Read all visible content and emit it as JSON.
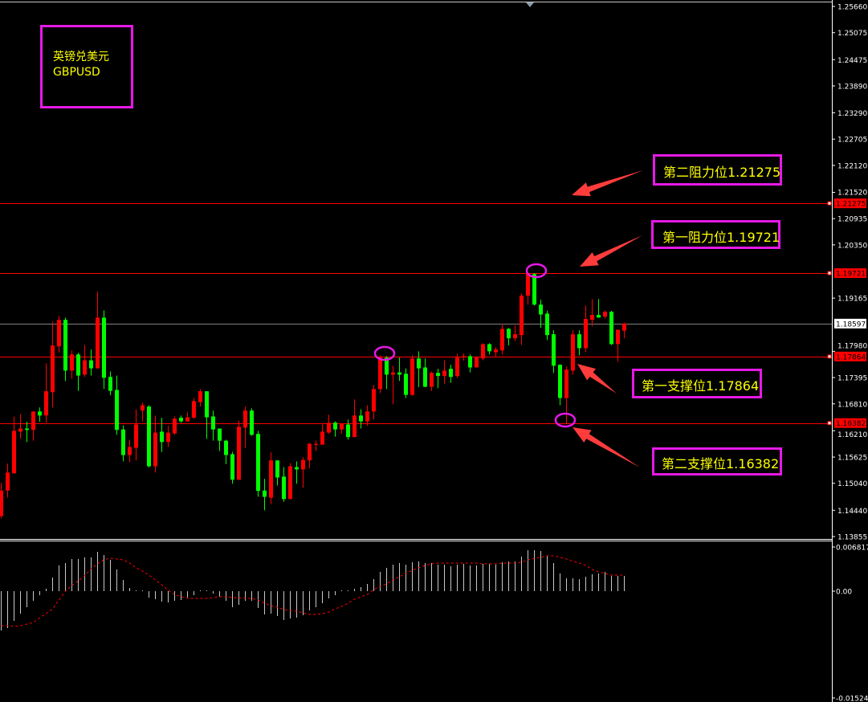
{
  "title_box": {
    "name_cn": "英镑兑美元",
    "symbol": "GBPUSD"
  },
  "annotations": [
    {
      "label": "第二阻力位1.21275",
      "level": 1.21275
    },
    {
      "label": "第一阻力位1.19721",
      "level": 1.19721
    },
    {
      "label": "第一支撑位1.17864",
      "level": 1.17864
    },
    {
      "label": "第二支撑位1.16382",
      "level": 1.16382
    }
  ],
  "colors": {
    "up": "#ff0000",
    "down": "#00ff00",
    "level_line": "#ff0000",
    "current_line": "#808080",
    "annotation_border": "#e619e6",
    "annotation_text": "#ffff00",
    "arrow": "#ff3c3c",
    "histogram": "#c8c8c8",
    "signal": "#ff0000"
  },
  "chart_data": [
    {
      "type": "candlestick",
      "title": "",
      "ylim": [
        1.13855,
        1.2566
      ],
      "y_ticks": [
        "1.25660",
        "1.25075",
        "1.24475",
        "1.23890",
        "1.23290",
        "1.22705",
        "1.22120",
        "1.21520",
        "1.20935",
        "1.20350",
        "1.19165",
        "1.17980",
        "1.17395",
        "1.16810",
        "1.16210",
        "1.15625",
        "1.15040",
        "1.14440",
        "1.13855"
      ],
      "price_markers": [
        {
          "value": "1.21275",
          "kind": "level"
        },
        {
          "value": "1.19721",
          "kind": "level"
        },
        {
          "value": "1.18597",
          "kind": "current"
        },
        {
          "value": "1.17864",
          "kind": "level"
        },
        {
          "value": "1.16382",
          "kind": "level"
        }
      ],
      "ohlc": [
        [
          1.1431,
          1.1505,
          1.1426,
          1.1488
        ],
        [
          1.1488,
          1.1548,
          1.1472,
          1.1528
        ],
        [
          1.1526,
          1.1653,
          1.1526,
          1.1621
        ],
        [
          1.1619,
          1.1658,
          1.1603,
          1.1626
        ],
        [
          1.1626,
          1.1641,
          1.1596,
          1.1623
        ],
        [
          1.1623,
          1.1664,
          1.1599,
          1.1664
        ],
        [
          1.1664,
          1.1673,
          1.1641,
          1.1655
        ],
        [
          1.1655,
          1.1771,
          1.1639,
          1.1709
        ],
        [
          1.1707,
          1.1864,
          1.1673,
          1.1811
        ],
        [
          1.1809,
          1.1877,
          1.1795,
          1.1868
        ],
        [
          1.1868,
          1.1873,
          1.1732,
          1.1755
        ],
        [
          1.1755,
          1.18,
          1.1737,
          1.1791
        ],
        [
          1.1791,
          1.1795,
          1.171,
          1.1744
        ],
        [
          1.1746,
          1.1812,
          1.1741,
          1.1778
        ],
        [
          1.1778,
          1.1802,
          1.1744,
          1.176
        ],
        [
          1.176,
          1.1931,
          1.176,
          1.1873
        ],
        [
          1.1873,
          1.1889,
          1.1714,
          1.1739
        ],
        [
          1.1741,
          1.1753,
          1.17,
          1.171
        ],
        [
          1.1712,
          1.1744,
          1.1612,
          1.1623
        ],
        [
          1.1624,
          1.1633,
          1.1553,
          1.1567
        ],
        [
          1.1567,
          1.1601,
          1.1551,
          1.1585
        ],
        [
          1.1583,
          1.1669,
          1.1555,
          1.1635
        ],
        [
          1.1666,
          1.1684,
          1.1642,
          1.1678
        ],
        [
          1.1675,
          1.1678,
          1.1539,
          1.1542
        ],
        [
          1.1542,
          1.1655,
          1.1528,
          1.1617
        ],
        [
          1.1619,
          1.165,
          1.1574,
          1.1596
        ],
        [
          1.1596,
          1.1632,
          1.1585,
          1.1617
        ],
        [
          1.1615,
          1.1653,
          1.1612,
          1.1648
        ],
        [
          1.165,
          1.1655,
          1.1639,
          1.1642
        ],
        [
          1.1642,
          1.1662,
          1.1641,
          1.1651
        ],
        [
          1.165,
          1.1694,
          1.1648,
          1.1687
        ],
        [
          1.1685,
          1.1714,
          1.1675,
          1.1709
        ],
        [
          1.1709,
          1.1709,
          1.1603,
          1.1651
        ],
        [
          1.1653,
          1.1666,
          1.1599,
          1.1624
        ],
        [
          1.1626,
          1.1626,
          1.1576,
          1.1599
        ],
        [
          1.1599,
          1.1601,
          1.1547,
          1.1567
        ],
        [
          1.1569,
          1.1574,
          1.1503,
          1.1512
        ],
        [
          1.1512,
          1.1644,
          1.1512,
          1.163
        ],
        [
          1.1628,
          1.1675,
          1.1583,
          1.1666
        ],
        [
          1.1666,
          1.1671,
          1.161,
          1.1612
        ],
        [
          1.1614,
          1.1621,
          1.1474,
          1.1487
        ],
        [
          1.1488,
          1.1514,
          1.1444,
          1.1474
        ],
        [
          1.1472,
          1.1573,
          1.1458,
          1.1555
        ],
        [
          1.1555,
          1.1555,
          1.1499,
          1.1517
        ],
        [
          1.1519,
          1.154,
          1.1463,
          1.1469
        ],
        [
          1.1469,
          1.1549,
          1.1469,
          1.1542
        ],
        [
          1.154,
          1.1553,
          1.1503,
          1.1535
        ],
        [
          1.1535,
          1.1562,
          1.1494,
          1.1556
        ],
        [
          1.1555,
          1.1594,
          1.1537,
          1.1592
        ],
        [
          1.159,
          1.1599,
          1.1576,
          1.1592
        ],
        [
          1.159,
          1.1635,
          1.159,
          1.1619
        ],
        [
          1.1617,
          1.1657,
          1.1614,
          1.1639
        ],
        [
          1.1639,
          1.1642,
          1.1608,
          1.1624
        ],
        [
          1.1624,
          1.1637,
          1.1615,
          1.1637
        ],
        [
          1.1635,
          1.1646,
          1.1601,
          1.1607
        ],
        [
          1.1607,
          1.1691,
          1.1607,
          1.1655
        ],
        [
          1.1655,
          1.1669,
          1.1626,
          1.1642
        ],
        [
          1.1642,
          1.1678,
          1.1632,
          1.1664
        ],
        [
          1.1664,
          1.1723,
          1.1646,
          1.1714
        ],
        [
          1.1714,
          1.1789,
          1.1705,
          1.1784
        ],
        [
          1.1784,
          1.1787,
          1.1714,
          1.1746
        ],
        [
          1.1746,
          1.1766,
          1.168,
          1.1751
        ],
        [
          1.1751,
          1.1784,
          1.1732,
          1.1746
        ],
        [
          1.1748,
          1.176,
          1.1694,
          1.1701
        ],
        [
          1.1701,
          1.1789,
          1.1699,
          1.1782
        ],
        [
          1.1782,
          1.1798,
          1.1718,
          1.176
        ],
        [
          1.1762,
          1.1782,
          1.1718,
          1.1719
        ],
        [
          1.1719,
          1.1753,
          1.171,
          1.175
        ],
        [
          1.175,
          1.1759,
          1.1716,
          1.1743
        ],
        [
          1.1743,
          1.1778,
          1.1726,
          1.1755
        ],
        [
          1.1759,
          1.1768,
          1.1728,
          1.1741
        ],
        [
          1.1743,
          1.1793,
          1.1739,
          1.1784
        ],
        [
          1.1785,
          1.1793,
          1.1777,
          1.1787
        ],
        [
          1.1787,
          1.1791,
          1.1751,
          1.1762
        ],
        [
          1.1762,
          1.1787,
          1.1762,
          1.1785
        ],
        [
          1.1782,
          1.1816,
          1.1778,
          1.1814
        ],
        [
          1.1814,
          1.1816,
          1.1791,
          1.1798
        ],
        [
          1.1796,
          1.1807,
          1.1786,
          1.1802
        ],
        [
          1.18,
          1.1859,
          1.1791,
          1.1848
        ],
        [
          1.1848,
          1.185,
          1.1811,
          1.1827
        ],
        [
          1.1827,
          1.1855,
          1.1821,
          1.1836
        ],
        [
          1.1834,
          1.1927,
          1.1812,
          1.1922
        ],
        [
          1.1922,
          1.1974,
          1.1902,
          1.197
        ],
        [
          1.197,
          1.1972,
          1.19,
          1.1902
        ],
        [
          1.1902,
          1.1913,
          1.185,
          1.188
        ],
        [
          1.1882,
          1.1889,
          1.1823,
          1.1834
        ],
        [
          1.1836,
          1.1845,
          1.175,
          1.1766
        ],
        [
          1.1768,
          1.1769,
          1.1678,
          1.1694
        ],
        [
          1.1694,
          1.1764,
          1.1637,
          1.1757
        ],
        [
          1.1755,
          1.1845,
          1.1746,
          1.1836
        ],
        [
          1.1836,
          1.1845,
          1.1789,
          1.1805
        ],
        [
          1.1805,
          1.19,
          1.1796,
          1.187
        ],
        [
          1.1868,
          1.1914,
          1.1854,
          1.1879
        ],
        [
          1.1879,
          1.1914,
          1.1873,
          1.1873
        ],
        [
          1.1875,
          1.1889,
          1.1871,
          1.1886
        ],
        [
          1.1886,
          1.1888,
          1.1812,
          1.1814
        ],
        [
          1.1814,
          1.1846,
          1.1775,
          1.1846
        ],
        [
          1.1844,
          1.1862,
          1.1827,
          1.186
        ]
      ]
    },
    {
      "type": "bar+line",
      "title": "",
      "ylim": [
        -0.015241,
        0.006817
      ],
      "y_ticks": [
        "0.006817",
        "0.00",
        "-0.015241"
      ],
      "histogram": [
        -0.00608,
        -0.0057,
        -0.00459,
        -0.00347,
        -0.00248,
        -0.00149,
        -0.00062,
        0.00037,
        0.00211,
        0.00397,
        0.00434,
        0.00496,
        0.00496,
        0.00521,
        0.00521,
        0.00608,
        0.00558,
        0.00484,
        0.00335,
        0.00174,
        0.0005,
        0.00012,
        0.00012,
        -0.00099,
        -0.00124,
        -0.00161,
        -0.00174,
        -0.00149,
        -0.00136,
        -0.00099,
        -0.00062,
        0,
        0,
        -0.00037,
        -0.00087,
        -0.00149,
        -0.00248,
        -0.00211,
        -0.00149,
        -0.00149,
        -0.0026,
        -0.0036,
        -0.00347,
        -0.00384,
        -0.00446,
        -0.00422,
        -0.00409,
        -0.00372,
        -0.00298,
        -0.00248,
        -0.00186,
        -0.00112,
        -0.00062,
        -0.00012,
        0,
        0.00037,
        0.00062,
        0.00112,
        0.00186,
        0.00298,
        0.0036,
        0.00409,
        0.00434,
        0.00409,
        0.00446,
        0.00459,
        0.00434,
        0.00434,
        0.00409,
        0.00409,
        0.00384,
        0.00409,
        0.00422,
        0.00397,
        0.00397,
        0.00422,
        0.00422,
        0.00409,
        0.00446,
        0.00459,
        0.00459,
        0.00533,
        0.00632,
        0.00632,
        0.0062,
        0.00546,
        0.00434,
        0.00273,
        0.00198,
        0.00198,
        0.00186,
        0.00223,
        0.0026,
        0.00273,
        0.00298,
        0.00236,
        0.00236,
        0.00236
      ],
      "signal": [
        -0.00533,
        -0.00533,
        -0.00546,
        -0.00533,
        -0.00508,
        -0.00484,
        -0.00409,
        -0.00347,
        -0.00273,
        -0.00136,
        0,
        0.00087,
        0.00161,
        0.00236,
        0.00347,
        0.00422,
        0.00484,
        0.00508,
        0.00496,
        0.00484,
        0.00434,
        0.0036,
        0.0031,
        0.00248,
        0.00174,
        0.00099,
        0.00012,
        -0.0005,
        -0.00087,
        -0.00112,
        -0.00112,
        -0.00112,
        -0.00112,
        -0.00099,
        -0.00087,
        -0.00087,
        -0.00099,
        -0.00099,
        -0.00112,
        -0.00112,
        -0.00136,
        -0.00186,
        -0.00223,
        -0.00248,
        -0.00285,
        -0.00298,
        -0.0031,
        -0.00335,
        -0.0036,
        -0.0036,
        -0.00347,
        -0.00322,
        -0.00273,
        -0.00236,
        -0.00186,
        -0.00124,
        -0.00087,
        -0.0005,
        0.00025,
        0.00074,
        0.00112,
        0.00174,
        0.00223,
        0.00273,
        0.00322,
        0.0036,
        0.00397,
        0.00422,
        0.00434,
        0.00434,
        0.00434,
        0.00434,
        0.00434,
        0.00434,
        0.00434,
        0.00422,
        0.00422,
        0.00422,
        0.00434,
        0.00434,
        0.00434,
        0.00446,
        0.00484,
        0.00508,
        0.00521,
        0.00546,
        0.00546,
        0.00521,
        0.00496,
        0.00459,
        0.00434,
        0.00397,
        0.00335,
        0.00298,
        0.00273,
        0.00248,
        0.00248,
        0.00248
      ]
    }
  ]
}
